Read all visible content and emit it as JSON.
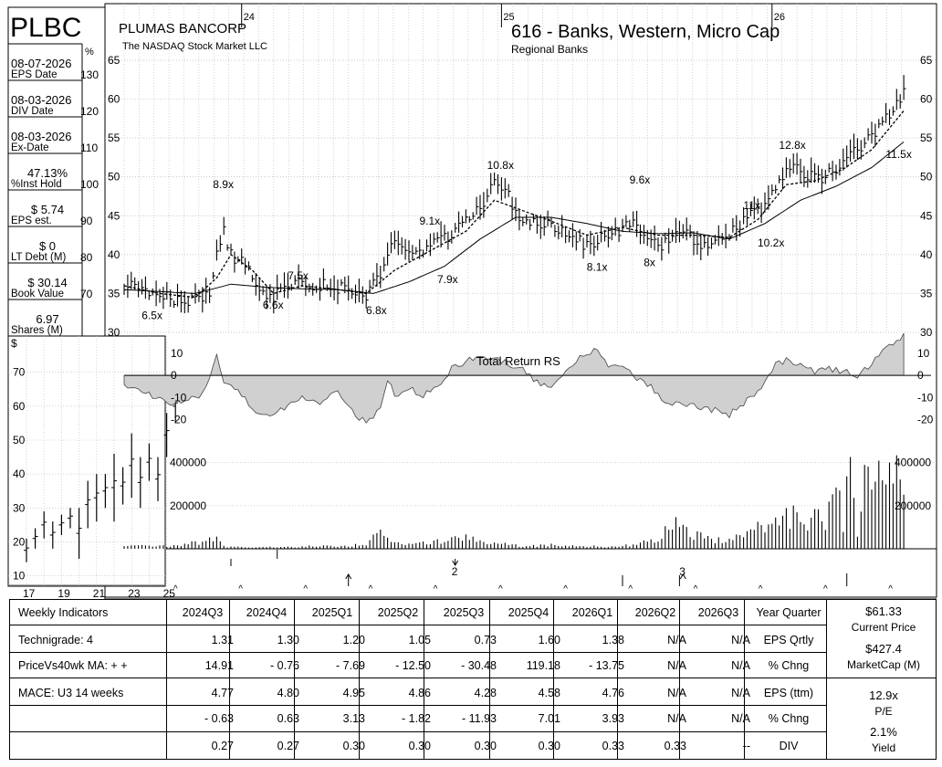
{
  "ticker": "PLBC",
  "company": "PLUMAS BANCORP",
  "exchange": "The NASDAQ Stock Market LLC",
  "group": "616 - Banks, Western, Micro Cap",
  "subgroup": "Regional Banks",
  "stats": [
    {
      "value": "08-07-2026",
      "label": "EPS Date"
    },
    {
      "value": "08-03-2026",
      "label": "DIV Date"
    },
    {
      "value": "08-03-2026",
      "label": "Ex-Date"
    },
    {
      "value": "47.13%",
      "label": "%Inst Hold"
    },
    {
      "value": "$ 5.74",
      "label": "EPS est."
    },
    {
      "value": "$ 0",
      "label": "LT Debt (M)"
    },
    {
      "value": "$ 30.14",
      "label": "Book Value"
    },
    {
      "value": "6.97",
      "label": "Shares (M)"
    }
  ],
  "pct_label": "%",
  "pct_ticks": [
    "130",
    "120",
    "110",
    "100",
    "90",
    "80",
    "70"
  ],
  "dollar_label": "$",
  "rs_label": "Total Return RS",
  "colors": {
    "grid": "#b8b8b8",
    "rs_fill": "#d0d0d0",
    "line": "#000000"
  },
  "chart_data": [
    {
      "type": "line",
      "name": "main-price-chart",
      "x_ticks": [
        "24",
        "25",
        "26"
      ],
      "y_ticks": [
        65,
        60,
        55,
        50,
        45,
        40,
        35,
        30
      ],
      "ylim": [
        30,
        65
      ],
      "grid": true,
      "pe_annotations": [
        {
          "label": "6.5x",
          "week": 7,
          "price": 32.2
        },
        {
          "label": "8.9x",
          "week": 27,
          "price": 49
        },
        {
          "label": "6.6x",
          "week": 41,
          "price": 33.5
        },
        {
          "label": "7.5x",
          "week": 48,
          "price": 37.3
        },
        {
          "label": "6.8x",
          "week": 70,
          "price": 32.8
        },
        {
          "label": "9.1x",
          "week": 85,
          "price": 44.3
        },
        {
          "label": "7.9x",
          "week": 90,
          "price": 36.8
        },
        {
          "label": "10.8x",
          "week": 104,
          "price": 51.5
        },
        {
          "label": "8.1x",
          "week": 132,
          "price": 38.4
        },
        {
          "label": "9.6x",
          "week": 144,
          "price": 49.6
        },
        {
          "label": "8x",
          "week": 148,
          "price": 39
        },
        {
          "label": "11x",
          "week": 176,
          "price": 46.3
        },
        {
          "label": "10.2x",
          "week": 180,
          "price": 41.5
        },
        {
          "label": "12.8x",
          "week": 186,
          "price": 54.1
        },
        {
          "label": "11.5x",
          "week": 216,
          "price": 52.9
        }
      ],
      "price_anchors": [
        [
          0,
          36
        ],
        [
          6,
          35.3
        ],
        [
          12,
          34.5
        ],
        [
          18,
          34
        ],
        [
          22,
          34.2
        ],
        [
          24,
          35
        ],
        [
          26,
          40
        ],
        [
          28,
          43
        ],
        [
          30,
          40
        ],
        [
          34,
          38.5
        ],
        [
          38,
          35.5
        ],
        [
          42,
          34.5
        ],
        [
          46,
          36
        ],
        [
          50,
          36.5
        ],
        [
          56,
          36
        ],
        [
          62,
          35.5
        ],
        [
          66,
          34.5
        ],
        [
          68,
          34.3
        ],
        [
          70,
          36
        ],
        [
          73,
          38
        ],
        [
          76,
          42
        ],
        [
          80,
          40
        ],
        [
          86,
          41
        ],
        [
          90,
          42
        ],
        [
          95,
          44
        ],
        [
          100,
          46
        ],
        [
          104,
          49
        ],
        [
          108,
          47.5
        ],
        [
          112,
          44
        ],
        [
          118,
          44
        ],
        [
          124,
          43
        ],
        [
          130,
          41
        ],
        [
          136,
          42.5
        ],
        [
          142,
          44
        ],
        [
          146,
          43
        ],
        [
          150,
          41
        ],
        [
          156,
          43
        ],
        [
          162,
          41.5
        ],
        [
          168,
          42
        ],
        [
          172,
          43.5
        ],
        [
          176,
          45
        ],
        [
          180,
          46
        ],
        [
          184,
          50
        ],
        [
          188,
          51
        ],
        [
          192,
          50
        ],
        [
          196,
          50
        ],
        [
          200,
          51
        ],
        [
          205,
          53
        ],
        [
          210,
          55
        ],
        [
          215,
          58
        ],
        [
          219,
          61
        ]
      ],
      "ma10_anchors": [
        [
          0,
          36
        ],
        [
          10,
          35
        ],
        [
          20,
          34.5
        ],
        [
          26,
          37
        ],
        [
          30,
          40
        ],
        [
          36,
          38
        ],
        [
          42,
          35
        ],
        [
          50,
          36
        ],
        [
          60,
          35.5
        ],
        [
          68,
          35
        ],
        [
          76,
          38
        ],
        [
          86,
          40.5
        ],
        [
          96,
          43
        ],
        [
          104,
          47
        ],
        [
          110,
          46
        ],
        [
          120,
          44.3
        ],
        [
          130,
          42.5
        ],
        [
          140,
          43.5
        ],
        [
          150,
          42.5
        ],
        [
          160,
          42.5
        ],
        [
          170,
          42.2
        ],
        [
          178,
          44.5
        ],
        [
          186,
          49
        ],
        [
          194,
          49.5
        ],
        [
          202,
          51
        ],
        [
          210,
          53.5
        ],
        [
          219,
          58.5
        ]
      ],
      "ma40_anchors": [
        [
          0,
          35.5
        ],
        [
          20,
          35
        ],
        [
          30,
          36.2
        ],
        [
          40,
          35.8
        ],
        [
          50,
          35.6
        ],
        [
          60,
          35.5
        ],
        [
          70,
          35
        ],
        [
          80,
          36.5
        ],
        [
          90,
          38.5
        ],
        [
          100,
          42
        ],
        [
          110,
          44.8
        ],
        [
          120,
          44.8
        ],
        [
          130,
          44
        ],
        [
          140,
          43
        ],
        [
          150,
          42.7
        ],
        [
          160,
          42.8
        ],
        [
          170,
          42
        ],
        [
          180,
          44
        ],
        [
          190,
          47
        ],
        [
          200,
          48.8
        ],
        [
          210,
          51.2
        ],
        [
          219,
          54.5
        ]
      ]
    },
    {
      "type": "line",
      "name": "inset-monthly-price",
      "x_ticks": [
        "17",
        "19",
        "21",
        "23",
        "25"
      ],
      "y_ticks": [
        70,
        60,
        50,
        40,
        30,
        20,
        10
      ],
      "ylim": [
        8,
        78
      ],
      "grid": true,
      "bars": [
        [
          17,
          14,
          21
        ],
        [
          17.5,
          18,
          24
        ],
        [
          18,
          21,
          29
        ],
        [
          18.5,
          18,
          26
        ],
        [
          19,
          22,
          28
        ],
        [
          19.5,
          24,
          30
        ],
        [
          20,
          15,
          30
        ],
        [
          20.5,
          24,
          38
        ],
        [
          21,
          26,
          40
        ],
        [
          21.5,
          30,
          40
        ],
        [
          22,
          26,
          46
        ],
        [
          22.5,
          31,
          42
        ],
        [
          23,
          33,
          52
        ],
        [
          23.5,
          30,
          45
        ],
        [
          24,
          38,
          49
        ],
        [
          24.5,
          32,
          45
        ],
        [
          25,
          45,
          58
        ],
        [
          25.5,
          55,
          65
        ]
      ]
    },
    {
      "type": "area",
      "name": "total-return-rs",
      "y_ticks": [
        10,
        0,
        -10,
        -20
      ],
      "ylim": [
        -26,
        17
      ],
      "anchors": [
        [
          0,
          -5
        ],
        [
          6,
          -8
        ],
        [
          10,
          -10
        ],
        [
          14,
          -13
        ],
        [
          18,
          -11
        ],
        [
          22,
          -9
        ],
        [
          24,
          -2
        ],
        [
          26,
          9
        ],
        [
          28,
          -2
        ],
        [
          32,
          -8
        ],
        [
          38,
          -18
        ],
        [
          44,
          -16
        ],
        [
          50,
          -10
        ],
        [
          54,
          -13
        ],
        [
          60,
          -8
        ],
        [
          64,
          -16
        ],
        [
          68,
          -22
        ],
        [
          72,
          -14
        ],
        [
          74,
          -2
        ],
        [
          76,
          -9
        ],
        [
          80,
          -6
        ],
        [
          84,
          -9
        ],
        [
          88,
          -5
        ],
        [
          92,
          3
        ],
        [
          96,
          6
        ],
        [
          100,
          9
        ],
        [
          104,
          8
        ],
        [
          108,
          5
        ],
        [
          112,
          3
        ],
        [
          116,
          -3
        ],
        [
          120,
          -6
        ],
        [
          124,
          3
        ],
        [
          128,
          8
        ],
        [
          132,
          12
        ],
        [
          136,
          5
        ],
        [
          140,
          4
        ],
        [
          144,
          -2
        ],
        [
          148,
          -5
        ],
        [
          152,
          -12
        ],
        [
          158,
          -13
        ],
        [
          164,
          -15
        ],
        [
          170,
          -18
        ],
        [
          176,
          -10
        ],
        [
          180,
          -4
        ],
        [
          183,
          5
        ],
        [
          186,
          7
        ],
        [
          190,
          4
        ],
        [
          194,
          2
        ],
        [
          198,
          3
        ],
        [
          202,
          2
        ],
        [
          206,
          0
        ],
        [
          210,
          5
        ],
        [
          214,
          12
        ],
        [
          219,
          18
        ]
      ]
    },
    {
      "type": "bar",
      "name": "weekly-volume",
      "y_ticks": [
        "400000",
        "200000"
      ],
      "ylim": [
        0,
        470000
      ],
      "events": [
        {
          "label": "2",
          "week": 93
        },
        {
          "label": "3",
          "week": 157
        }
      ],
      "spikes": [
        [
          12,
          15000
        ],
        [
          16,
          20000
        ],
        [
          22,
          40000
        ],
        [
          26,
          60000
        ],
        [
          28,
          12000
        ],
        [
          36,
          10000
        ],
        [
          44,
          8000
        ],
        [
          50,
          12000
        ],
        [
          56,
          15000
        ],
        [
          68,
          20000
        ],
        [
          72,
          100000
        ],
        [
          76,
          30000
        ],
        [
          80,
          25000
        ],
        [
          88,
          40000
        ],
        [
          95,
          60000
        ],
        [
          100,
          40000
        ],
        [
          104,
          30000
        ],
        [
          106,
          25000
        ],
        [
          112,
          15000
        ],
        [
          120,
          20000
        ],
        [
          130,
          15000
        ],
        [
          136,
          10000
        ],
        [
          142,
          20000
        ],
        [
          148,
          40000
        ],
        [
          152,
          90000
        ],
        [
          156,
          160000
        ],
        [
          160,
          70000
        ],
        [
          164,
          60000
        ],
        [
          168,
          40000
        ],
        [
          176,
          110000
        ],
        [
          184,
          180000
        ],
        [
          186,
          160000
        ],
        [
          188,
          180000
        ],
        [
          190,
          120000
        ],
        [
          192,
          160000
        ],
        [
          194,
          170000
        ],
        [
          196,
          140000
        ],
        [
          198,
          200000
        ],
        [
          200,
          480000
        ],
        [
          202,
          150000
        ],
        [
          204,
          420000
        ],
        [
          206,
          90000
        ],
        [
          208,
          340000
        ],
        [
          210,
          330000
        ],
        [
          212,
          380000
        ],
        [
          214,
          250000
        ],
        [
          216,
          420000
        ],
        [
          218,
          410000
        ],
        [
          220,
          220000
        ]
      ]
    }
  ],
  "table": {
    "header": [
      "Weekly Indicators",
      "2024Q3",
      "2024Q4",
      "2025Q1",
      "2025Q2",
      "2025Q3",
      "2025Q4",
      "2026Q1",
      "2026Q2",
      "2026Q3",
      "Year Quarter"
    ],
    "rows": [
      [
        "Technigrade: 4",
        "1.31",
        "1.30",
        "1.20",
        "1.05",
        "0.73",
        "1.60",
        "1.38",
        "N/A",
        "N/A",
        "EPS Qrtly"
      ],
      [
        "PriceVs40wk MA:  + +",
        "14.91",
        "- 0.76",
        "- 7.69",
        "- 12.50",
        "- 30.48",
        "119.18",
        "- 13.75",
        "N/A",
        "N/A",
        "% Chng"
      ],
      [
        "MACE: U3   14 weeks",
        "4.77",
        "4.80",
        "4.95",
        "4.86",
        "4.28",
        "4.58",
        "4.76",
        "N/A",
        "N/A",
        "EPS (ttm)"
      ],
      [
        "",
        "- 0.63",
        "0.63",
        "3.13",
        "- 1.82",
        "- 11.93",
        "7.01",
        "3.93",
        "N/A",
        "N/A",
        "% Chng"
      ],
      [
        "",
        "0.27",
        "0.27",
        "0.30",
        "0.30",
        "0.30",
        "0.30",
        "0.33",
        "0.33",
        "--",
        "DIV"
      ]
    ],
    "side": [
      {
        "value": "$61.33",
        "label": "Current Price"
      },
      {
        "value": "$427.4",
        "label": "MarketCap (M)"
      },
      {
        "value": "12.9x",
        "label": "P/E"
      },
      {
        "value": "2.1%",
        "label": "Yield"
      }
    ]
  }
}
